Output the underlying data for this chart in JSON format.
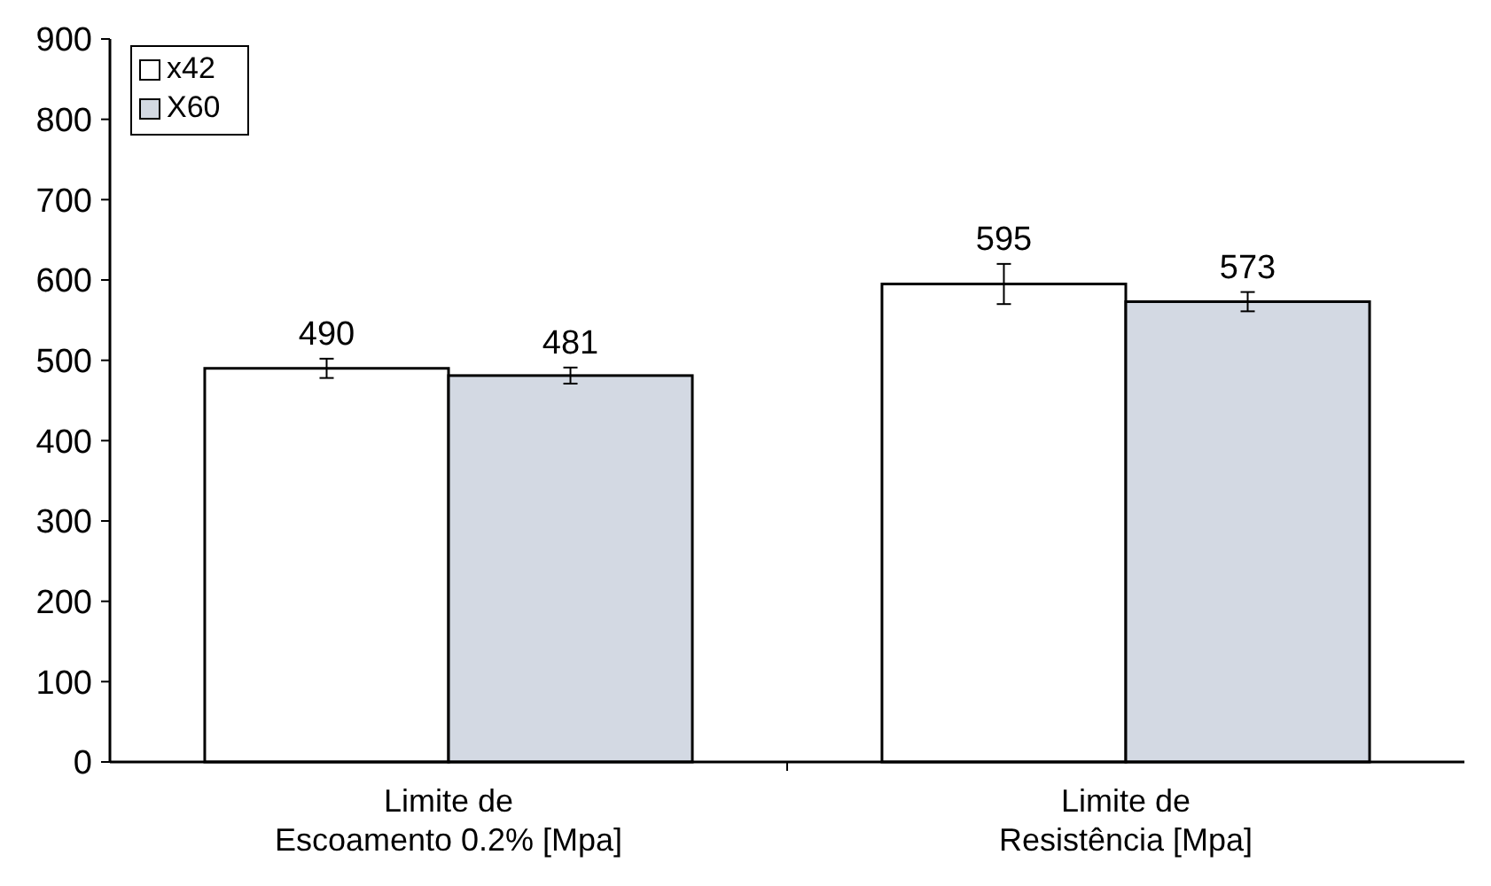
{
  "chart_data": {
    "type": "bar",
    "categories": [
      "Limite de\nEscoamento 0.2% [Mpa]",
      "Limite de\nResistência [Mpa]"
    ],
    "series": [
      {
        "name": "x42",
        "color": "#ffffff",
        "values": [
          490,
          595
        ],
        "errors": [
          12,
          25
        ]
      },
      {
        "name": "X60",
        "color": "#d3d9e3",
        "values": [
          481,
          573
        ],
        "errors": [
          10,
          12
        ]
      }
    ],
    "ylim": [
      0,
      900
    ],
    "yticks": [
      0,
      100,
      200,
      300,
      400,
      500,
      600,
      700,
      800,
      900
    ],
    "data_labels": true,
    "legend": "top left",
    "grid": false
  }
}
